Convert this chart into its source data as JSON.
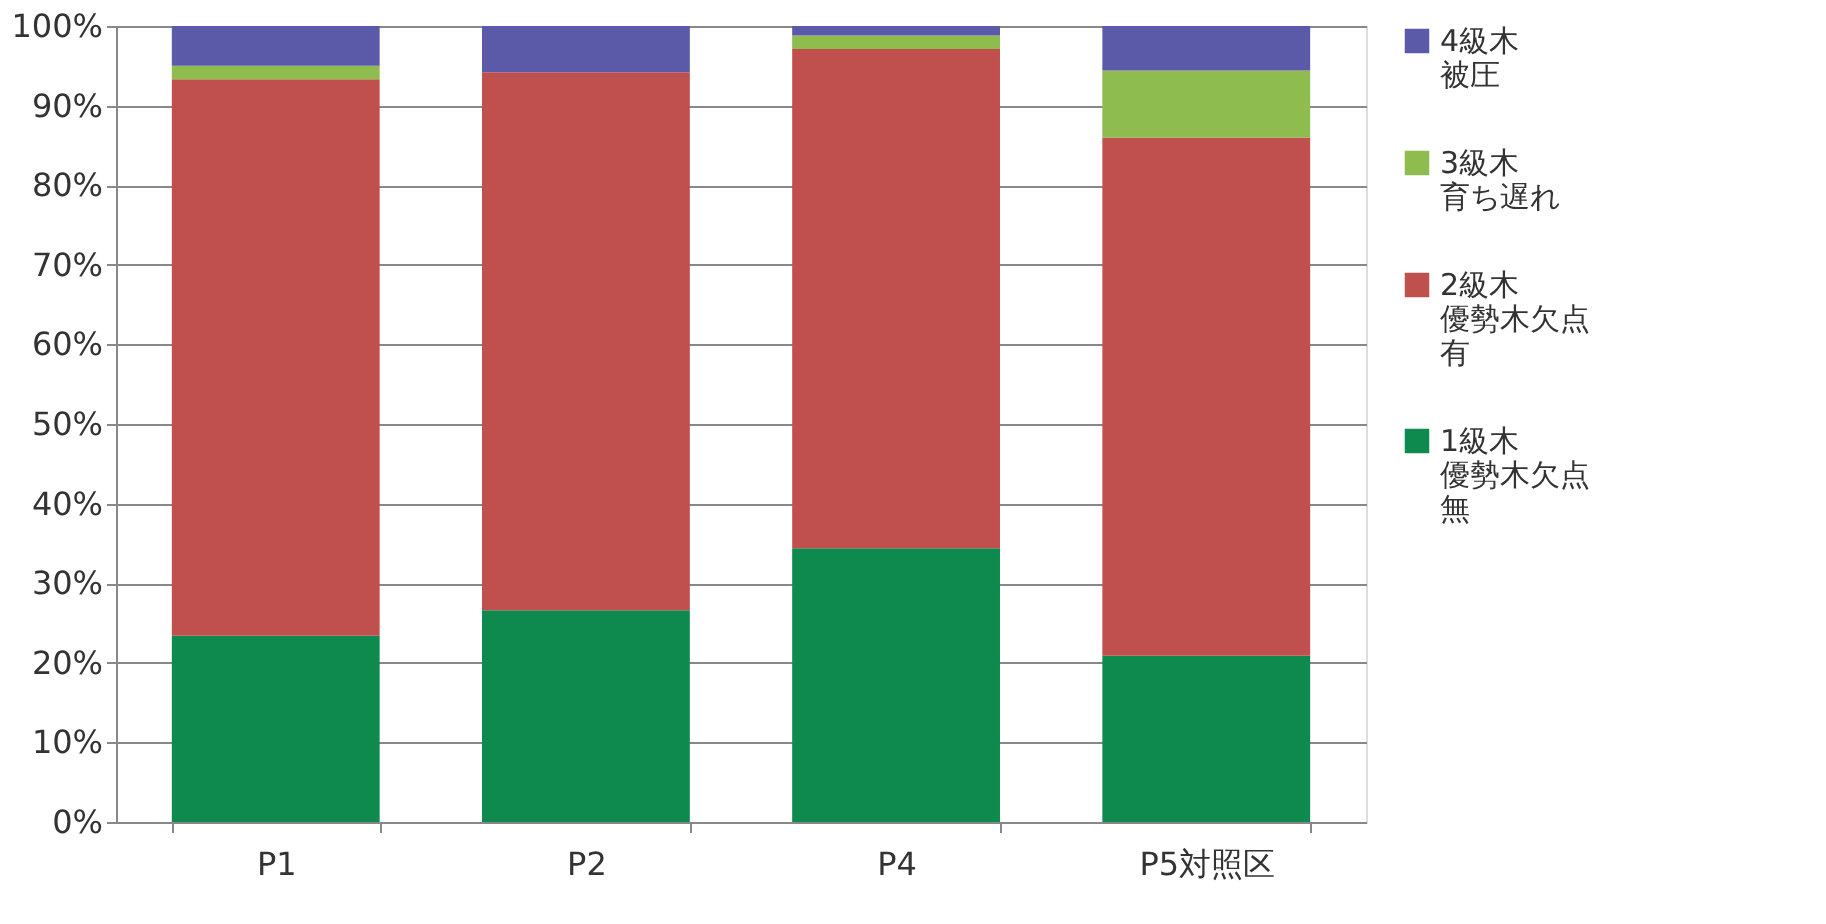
{
  "chart_data": {
    "type": "bar",
    "stacked": true,
    "categories": [
      "P1",
      "P2",
      "P4",
      "P5対照区"
    ],
    "series": [
      {
        "name": "1級木優勢木欠点無",
        "color": "#0e8a4f",
        "values": [
          23.4,
          26.6,
          34.4,
          20.9
        ]
      },
      {
        "name": "2級木優勢木欠点有",
        "color": "#c0504d",
        "values": [
          69.9,
          67.6,
          62.7,
          65.1
        ]
      },
      {
        "name": "3級木育ち遅れ",
        "color": "#8fbc4f",
        "values": [
          1.7,
          0,
          1.7,
          8.4
        ]
      },
      {
        "name": "4級木被圧",
        "color": "#5a5aa8",
        "values": [
          5.0,
          5.8,
          1.2,
          5.6
        ]
      }
    ],
    "ylim": [
      0,
      100
    ],
    "yticks": [
      {
        "value": 0,
        "label": "0%"
      },
      {
        "value": 10,
        "label": "10%"
      },
      {
        "value": 20,
        "label": "20%"
      },
      {
        "value": 30,
        "label": "30%"
      },
      {
        "value": 40,
        "label": "40%"
      },
      {
        "value": 50,
        "label": "50%"
      },
      {
        "value": 60,
        "label": "60%"
      },
      {
        "value": 70,
        "label": "70%"
      },
      {
        "value": 80,
        "label": "80%"
      },
      {
        "value": 90,
        "label": "90%"
      },
      {
        "value": 100,
        "label": "100%"
      }
    ],
    "grid": "y",
    "legend": "right"
  }
}
